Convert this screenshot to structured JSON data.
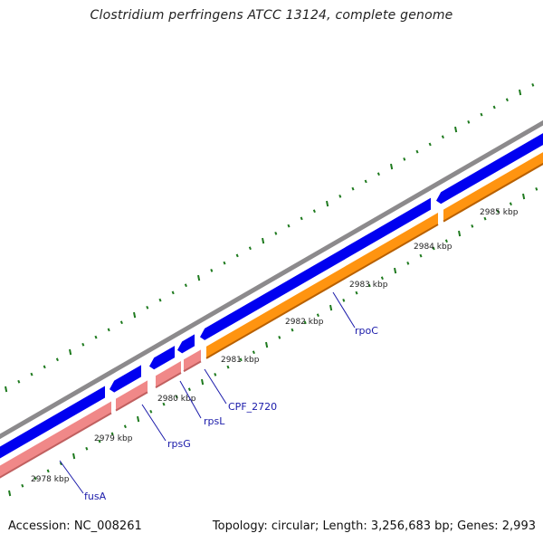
{
  "title": "Clostridium perfringens ATCC 13124, complete genome",
  "footer": {
    "accession": "Accession: NC_008261",
    "summary": "Topology: circular; Length: 3,256,683 bp; Genes: 2,993"
  },
  "colors": {
    "backbone": "#8c8a8c",
    "forward_gene": "#0000f0",
    "reverse_gene": "#f08888",
    "reverse_gene_dark": "#c06060",
    "rpoC_gene": "#ff9410",
    "rpoC_gene_dark": "#b86000",
    "tick": "#1e7a1e",
    "label": "#1a1aaa"
  },
  "ruler": [
    {
      "label": "2978 kbp"
    },
    {
      "label": "2979 kbp"
    },
    {
      "label": "2980 kbp"
    },
    {
      "label": "2981 kbp"
    },
    {
      "label": "2982 kbp"
    },
    {
      "label": "2983 kbp"
    },
    {
      "label": "2984 kbp"
    },
    {
      "label": "2985 kbp"
    }
  ],
  "gene_labels": [
    {
      "name": "fusA"
    },
    {
      "name": "rpsG"
    },
    {
      "name": "rpsL"
    },
    {
      "name": "CPF_2720"
    },
    {
      "name": "rpoC"
    }
  ]
}
